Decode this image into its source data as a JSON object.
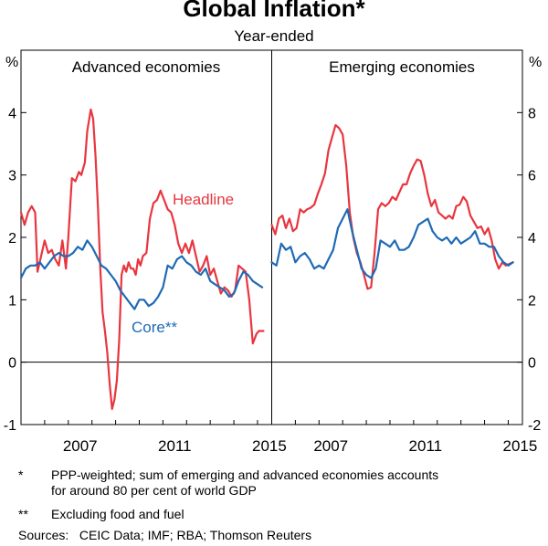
{
  "title": "Global Inflation*",
  "subtitle": "Year-ended",
  "colors": {
    "headline": "#e8363f",
    "core": "#1f6ab5",
    "axis": "#000000"
  },
  "chart_data": [
    {
      "type": "line",
      "panel_title": "Advanced economies",
      "ylabel": "%",
      "ylim": [
        -1,
        5
      ],
      "yticks": [
        -1,
        0,
        1,
        2,
        3,
        4
      ],
      "xlim": [
        2005.0,
        2015.6
      ],
      "xticks": [
        2007,
        2011,
        2015
      ],
      "series": [
        {
          "name": "Headline",
          "label_text": "Headline",
          "x": [
            2005.0,
            2005.15,
            2005.3,
            2005.45,
            2005.6,
            2005.7,
            2005.85,
            2006.0,
            2006.15,
            2006.3,
            2006.45,
            2006.6,
            2006.75,
            2006.9,
            2007.0,
            2007.15,
            2007.3,
            2007.45,
            2007.55,
            2007.7,
            2007.8,
            2007.95,
            2008.05,
            2008.15,
            2008.25,
            2008.35,
            2008.45,
            2008.55,
            2008.65,
            2008.75,
            2008.85,
            2008.95,
            2009.05,
            2009.15,
            2009.25,
            2009.35,
            2009.45,
            2009.55,
            2009.65,
            2009.75,
            2009.85,
            2009.95,
            2010.05,
            2010.15,
            2010.3,
            2010.45,
            2010.6,
            2010.75,
            2010.9,
            2011.05,
            2011.2,
            2011.35,
            2011.5,
            2011.65,
            2011.8,
            2011.95,
            2012.1,
            2012.25,
            2012.4,
            2012.55,
            2012.7,
            2012.85,
            2013.0,
            2013.15,
            2013.3,
            2013.45,
            2013.6,
            2013.75,
            2013.9,
            2014.05,
            2014.2,
            2014.35,
            2014.5,
            2014.65,
            2014.8,
            2014.95,
            2015.05,
            2015.15,
            2015.25
          ],
          "values": [
            2.4,
            2.2,
            2.4,
            2.5,
            2.4,
            1.45,
            1.7,
            1.95,
            1.75,
            1.8,
            1.65,
            1.55,
            1.95,
            1.5,
            2.0,
            2.95,
            2.9,
            3.05,
            3.0,
            3.2,
            3.7,
            4.05,
            3.9,
            3.3,
            2.5,
            1.5,
            0.8,
            0.5,
            0.15,
            -0.35,
            -0.75,
            -0.6,
            -0.3,
            0.35,
            1.4,
            1.55,
            1.45,
            1.6,
            1.5,
            1.5,
            1.4,
            1.65,
            1.55,
            1.7,
            1.75,
            2.3,
            2.55,
            2.6,
            2.75,
            2.6,
            2.45,
            2.4,
            2.2,
            1.9,
            1.75,
            1.9,
            1.75,
            1.95,
            1.7,
            1.45,
            1.55,
            1.7,
            1.4,
            1.5,
            1.3,
            1.1,
            1.2,
            1.15,
            1.05,
            1.15,
            1.55,
            1.5,
            1.45,
            1.0,
            0.3,
            0.45,
            0.5,
            0.5,
            0.5
          ]
        },
        {
          "name": "Core",
          "label_text": "Core**",
          "x": [
            2005.0,
            2005.2,
            2005.4,
            2005.6,
            2005.8,
            2006.0,
            2006.2,
            2006.4,
            2006.6,
            2006.8,
            2007.0,
            2007.2,
            2007.4,
            2007.6,
            2007.8,
            2008.0,
            2008.2,
            2008.4,
            2008.6,
            2008.8,
            2009.0,
            2009.2,
            2009.4,
            2009.6,
            2009.8,
            2010.0,
            2010.2,
            2010.4,
            2010.6,
            2010.8,
            2011.0,
            2011.2,
            2011.4,
            2011.6,
            2011.8,
            2012.0,
            2012.2,
            2012.4,
            2012.6,
            2012.8,
            2013.0,
            2013.2,
            2013.4,
            2013.6,
            2013.8,
            2014.0,
            2014.2,
            2014.4,
            2014.6,
            2014.8,
            2015.0,
            2015.2
          ],
          "values": [
            1.35,
            1.5,
            1.55,
            1.55,
            1.6,
            1.5,
            1.6,
            1.7,
            1.75,
            1.7,
            1.7,
            1.75,
            1.85,
            1.8,
            1.95,
            1.85,
            1.7,
            1.55,
            1.5,
            1.4,
            1.3,
            1.15,
            1.05,
            0.95,
            0.85,
            1.0,
            1.0,
            0.9,
            0.95,
            1.05,
            1.2,
            1.55,
            1.5,
            1.65,
            1.7,
            1.6,
            1.55,
            1.45,
            1.4,
            1.5,
            1.3,
            1.25,
            1.2,
            1.15,
            1.05,
            1.1,
            1.3,
            1.45,
            1.4,
            1.3,
            1.25,
            1.2
          ]
        }
      ]
    },
    {
      "type": "line",
      "panel_title": "Emerging economies",
      "ylabel": "%",
      "ylim": [
        -2,
        10
      ],
      "yticks": [
        -2,
        0,
        2,
        4,
        6,
        8
      ],
      "xlim": [
        2005.0,
        2015.6
      ],
      "xticks": [
        2007,
        2011,
        2015
      ],
      "series": [
        {
          "name": "Headline",
          "x": [
            2005.0,
            2005.15,
            2005.3,
            2005.45,
            2005.6,
            2005.75,
            2005.9,
            2006.05,
            2006.2,
            2006.35,
            2006.5,
            2006.65,
            2006.8,
            2006.95,
            2007.1,
            2007.25,
            2007.4,
            2007.55,
            2007.7,
            2007.85,
            2008.0,
            2008.15,
            2008.3,
            2008.45,
            2008.6,
            2008.75,
            2008.9,
            2009.05,
            2009.2,
            2009.35,
            2009.5,
            2009.65,
            2009.8,
            2009.95,
            2010.1,
            2010.25,
            2010.4,
            2010.55,
            2010.7,
            2010.85,
            2011.0,
            2011.15,
            2011.3,
            2011.45,
            2011.6,
            2011.75,
            2011.9,
            2012.05,
            2012.2,
            2012.35,
            2012.5,
            2012.65,
            2012.8,
            2012.95,
            2013.1,
            2013.25,
            2013.4,
            2013.55,
            2013.7,
            2013.85,
            2014.0,
            2014.15,
            2014.3,
            2014.45,
            2014.6,
            2014.75,
            2014.9,
            2015.05,
            2015.2
          ],
          "values": [
            4.4,
            4.1,
            4.6,
            4.7,
            4.3,
            4.6,
            4.2,
            4.3,
            4.9,
            4.8,
            4.9,
            4.95,
            5.05,
            5.4,
            5.7,
            6.05,
            6.8,
            7.2,
            7.6,
            7.5,
            7.3,
            6.3,
            4.8,
            4.0,
            3.5,
            3.2,
            2.8,
            2.35,
            2.4,
            3.5,
            4.9,
            5.1,
            5.0,
            5.1,
            5.3,
            5.2,
            5.45,
            5.7,
            5.7,
            6.05,
            6.3,
            6.5,
            6.45,
            6.0,
            5.4,
            5.0,
            5.2,
            4.8,
            4.7,
            4.6,
            4.7,
            4.6,
            5.0,
            5.05,
            5.3,
            5.15,
            4.7,
            4.5,
            4.3,
            4.35,
            4.1,
            4.3,
            3.9,
            3.3,
            3.0,
            3.2,
            3.1,
            3.15,
            3.2
          ]
        },
        {
          "name": "Core",
          "x": [
            2005.0,
            2005.2,
            2005.4,
            2005.6,
            2005.8,
            2006.0,
            2006.2,
            2006.4,
            2006.6,
            2006.8,
            2007.0,
            2007.2,
            2007.4,
            2007.6,
            2007.8,
            2008.0,
            2008.2,
            2008.4,
            2008.6,
            2008.8,
            2009.0,
            2009.2,
            2009.4,
            2009.6,
            2009.8,
            2010.0,
            2010.2,
            2010.4,
            2010.6,
            2010.8,
            2011.0,
            2011.2,
            2011.4,
            2011.6,
            2011.8,
            2012.0,
            2012.2,
            2012.4,
            2012.6,
            2012.8,
            2013.0,
            2013.2,
            2013.4,
            2013.6,
            2013.8,
            2014.0,
            2014.2,
            2014.4,
            2014.6,
            2014.8,
            2015.0,
            2015.2
          ],
          "values": [
            3.2,
            3.1,
            3.8,
            3.6,
            3.7,
            3.2,
            3.4,
            3.5,
            3.3,
            3.0,
            3.1,
            3.0,
            3.3,
            3.6,
            4.3,
            4.6,
            4.9,
            4.2,
            3.6,
            3.0,
            2.8,
            2.7,
            3.0,
            3.9,
            3.8,
            3.7,
            3.9,
            3.6,
            3.6,
            3.7,
            4.0,
            4.4,
            4.5,
            4.6,
            4.2,
            4.0,
            3.9,
            4.0,
            3.8,
            4.0,
            3.8,
            3.9,
            4.0,
            4.2,
            3.8,
            3.8,
            3.7,
            3.7,
            3.4,
            3.2,
            3.1,
            3.2
          ]
        }
      ]
    }
  ],
  "footnotes": [
    {
      "mark": "*",
      "lines": [
        "PPP-weighted; sum of emerging and advanced economies accounts",
        "for around 80 per cent of world GDP"
      ]
    },
    {
      "mark": "**",
      "lines": [
        "Excluding food and fuel"
      ]
    }
  ],
  "sources": "Sources:   CEIC Data; IMF; RBA; Thomson Reuters"
}
